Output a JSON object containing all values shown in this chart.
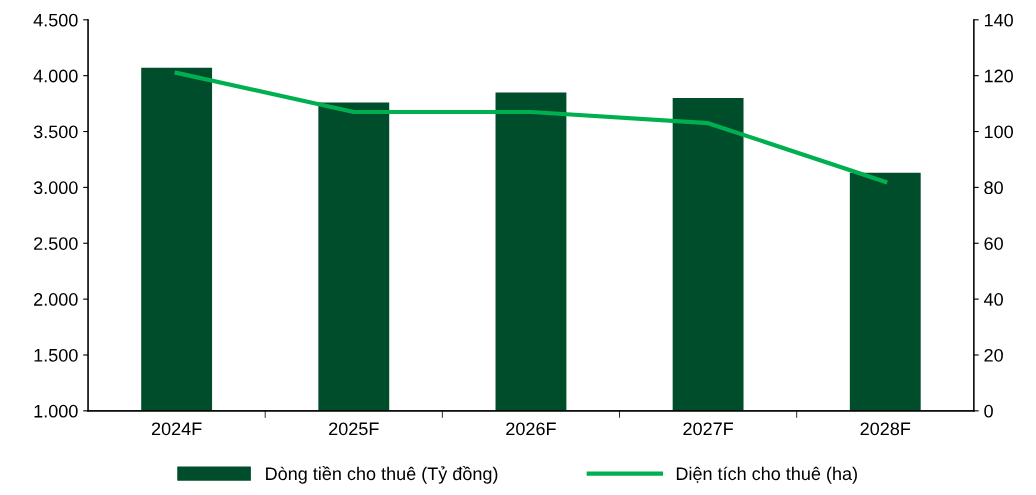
{
  "chart_data": {
    "type": "bar",
    "categories": [
      "2024F",
      "2025F",
      "2026F",
      "2027F",
      "2028F"
    ],
    "series": [
      {
        "name": "Dòng tiền cho thuê (Tỷ đồng)",
        "color": "#004d2c",
        "values": [
          4070,
          3760,
          3850,
          3800,
          3130
        ]
      },
      {
        "name": "Diện tích cho thuê (ha)",
        "color": "#00b050",
        "type": "line",
        "axis": "y2",
        "values": [
          121,
          107,
          107,
          103,
          82
        ]
      }
    ],
    "ylim": [
      1000,
      4500
    ],
    "yticks": [
      {
        "value": 1000,
        "label": "1.000"
      },
      {
        "value": 1500,
        "label": "1.500"
      },
      {
        "value": 2000,
        "label": "2.000"
      },
      {
        "value": 2500,
        "label": "2.500"
      },
      {
        "value": 3000,
        "label": "3.000"
      },
      {
        "value": 3500,
        "label": "3.500"
      },
      {
        "value": 4000,
        "label": "4.000"
      },
      {
        "value": 4500,
        "label": "4.500"
      }
    ],
    "y2lim": [
      0,
      140
    ],
    "y2ticks": [
      0,
      20,
      40,
      60,
      80,
      100,
      120,
      140
    ],
    "legend": "bottom",
    "grid": false,
    "marker": "none",
    "line_style": "solid"
  }
}
